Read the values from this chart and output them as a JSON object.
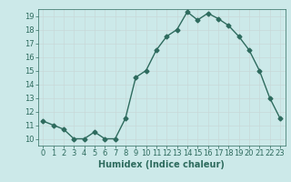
{
  "x": [
    0,
    1,
    2,
    3,
    4,
    5,
    6,
    7,
    8,
    9,
    10,
    11,
    12,
    13,
    14,
    15,
    16,
    17,
    18,
    19,
    20,
    21,
    22,
    23
  ],
  "y": [
    11.3,
    11.0,
    10.7,
    10.0,
    10.0,
    10.5,
    10.0,
    10.0,
    11.5,
    14.5,
    15.0,
    16.5,
    17.5,
    18.0,
    19.3,
    18.7,
    19.2,
    18.8,
    18.3,
    17.5,
    16.5,
    15.0,
    13.0,
    11.5
  ],
  "line_color": "#2e6b5e",
  "marker": "D",
  "marker_size": 2.5,
  "bg_color": "#cce9e9",
  "grid_color": "#c8d8d8",
  "xlabel": "Humidex (Indice chaleur)",
  "ylim": [
    9.5,
    19.5
  ],
  "xlim": [
    -0.5,
    23.5
  ],
  "yticks": [
    10,
    11,
    12,
    13,
    14,
    15,
    16,
    17,
    18,
    19
  ],
  "xticks": [
    0,
    1,
    2,
    3,
    4,
    5,
    6,
    7,
    8,
    9,
    10,
    11,
    12,
    13,
    14,
    15,
    16,
    17,
    18,
    19,
    20,
    21,
    22,
    23
  ],
  "tick_color": "#2e6b5e",
  "label_color": "#2e6b5e",
  "font_size": 6,
  "xlabel_fontsize": 7,
  "linewidth": 1.0
}
